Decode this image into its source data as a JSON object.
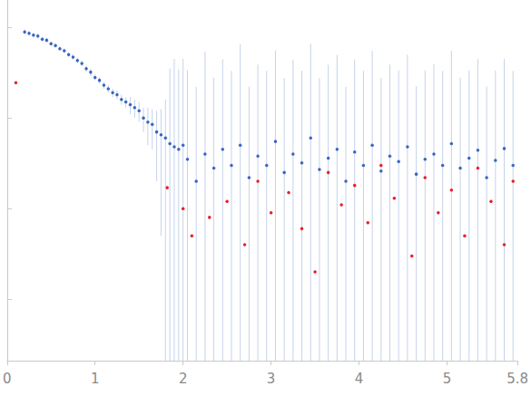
{
  "chart_data": {
    "type": "scatter",
    "xlim": [
      0,
      5.8
    ],
    "xticks": [
      0,
      1,
      2,
      3,
      4,
      5
    ],
    "ylim": [
      0.00021,
      2
    ],
    "yticks": [
      0.001,
      0.01,
      0.1,
      1
    ],
    "log": "y",
    "grid": false,
    "tick_labels": "x",
    "series": [
      {
        "color": "#3a66c4",
        "marker": "circle",
        "x": [
          0.2,
          0.25,
          0.3,
          0.35,
          0.4,
          0.45,
          0.5,
          0.55,
          0.6,
          0.65,
          0.7,
          0.75,
          0.8,
          0.85,
          0.9,
          0.95,
          1.0,
          1.05,
          1.1,
          1.15,
          1.2,
          1.25,
          1.3,
          1.35,
          1.4,
          1.45,
          1.5,
          1.55,
          1.6,
          1.65,
          1.7,
          1.75,
          1.8,
          1.85,
          1.9,
          1.95,
          2.0,
          2.05,
          2.15,
          2.25,
          2.35,
          2.45,
          2.55,
          2.65,
          2.75,
          2.85,
          2.95,
          3.05,
          3.15,
          3.25,
          3.35,
          3.45,
          3.55,
          3.65,
          3.75,
          3.85,
          3.95,
          4.05,
          4.15,
          4.25,
          4.35,
          4.45,
          4.55,
          4.65,
          4.75,
          4.85,
          4.95,
          5.05,
          5.15,
          5.25,
          5.35,
          5.45,
          5.55,
          5.65,
          5.75
        ],
        "values": [
          0.89,
          0.86,
          0.82,
          0.8,
          0.74,
          0.72,
          0.66,
          0.63,
          0.58,
          0.55,
          0.5,
          0.47,
          0.43,
          0.4,
          0.35,
          0.32,
          0.28,
          0.26,
          0.23,
          0.21,
          0.19,
          0.18,
          0.16,
          0.15,
          0.14,
          0.13,
          0.12,
          0.1,
          0.09,
          0.085,
          0.07,
          0.065,
          0.06,
          0.052,
          0.048,
          0.045,
          0.05,
          0.035,
          0.02,
          0.04,
          0.028,
          0.045,
          0.03,
          0.05,
          0.022,
          0.038,
          0.03,
          0.055,
          0.025,
          0.04,
          0.032,
          0.06,
          0.027,
          0.036,
          0.045,
          0.02,
          0.042,
          0.03,
          0.05,
          0.026,
          0.038,
          0.033,
          0.048,
          0.024,
          0.035,
          0.04,
          0.03,
          0.052,
          0.028,
          0.036,
          0.044,
          0.022,
          0.034,
          0.046,
          0.03
        ],
        "errors": [
          0.06,
          0.05,
          0.05,
          0.05,
          0.04,
          0.04,
          0.04,
          0.04,
          0.03,
          0.03,
          0.03,
          0.03,
          0.03,
          0.03,
          0.03,
          0.03,
          0.02,
          0.02,
          0.02,
          0.02,
          0.02,
          0.02,
          0.02,
          0.02,
          0.03,
          0.03,
          0.03,
          0.03,
          0.04,
          0.04,
          0.05,
          0.06,
          0.1,
          0.3,
          0.4,
          0.3,
          0.4,
          0.3,
          0.2,
          0.5,
          0.25,
          0.4,
          0.3,
          0.6,
          0.2,
          0.35,
          0.3,
          0.5,
          0.25,
          0.4,
          0.3,
          0.6,
          0.25,
          0.35,
          0.45,
          0.2,
          0.4,
          0.3,
          0.5,
          0.25,
          0.35,
          0.3,
          0.45,
          0.2,
          0.3,
          0.35,
          0.3,
          0.5,
          0.25,
          0.3,
          0.4,
          0.2,
          0.3,
          0.4,
          0.3
        ]
      },
      {
        "color": "#e8202a",
        "marker": "circle",
        "x": [
          0.1,
          1.82,
          2.0,
          2.1,
          2.3,
          2.5,
          2.7,
          2.85,
          3.0,
          3.2,
          3.35,
          3.5,
          3.65,
          3.8,
          3.95,
          4.1,
          4.25,
          4.4,
          4.6,
          4.75,
          4.9,
          5.05,
          5.2,
          5.35,
          5.5,
          5.65,
          5.75
        ],
        "values": [
          0.245,
          0.017,
          0.01,
          0.005,
          0.008,
          0.012,
          0.004,
          0.02,
          0.009,
          0.015,
          0.006,
          0.002,
          0.025,
          0.011,
          0.018,
          0.007,
          0.03,
          0.013,
          0.003,
          0.022,
          0.009,
          0.016,
          0.005,
          0.028,
          0.012,
          0.004,
          0.02
        ]
      }
    ]
  }
}
